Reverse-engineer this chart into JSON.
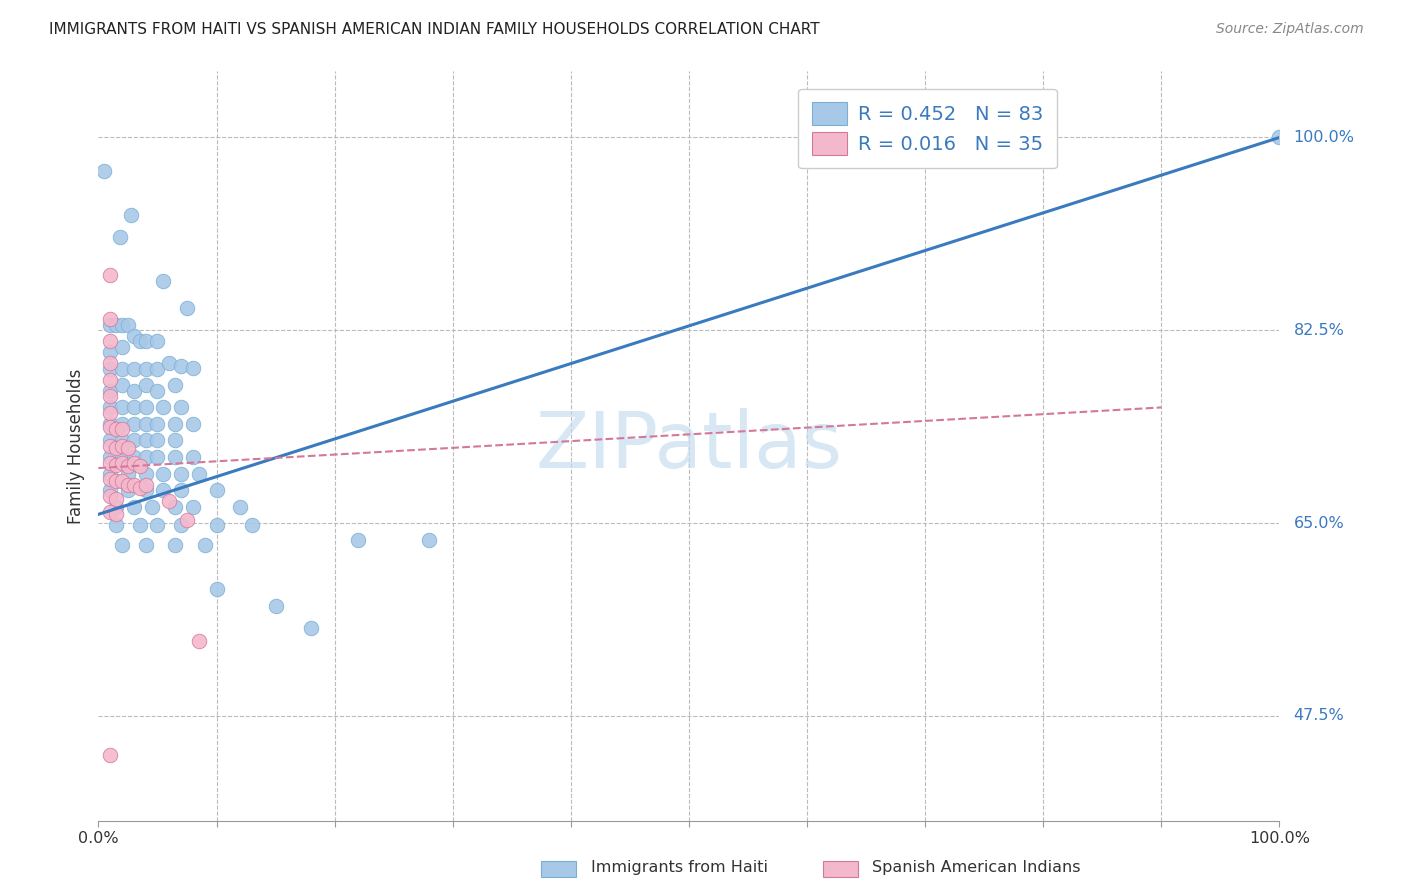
{
  "title": "IMMIGRANTS FROM HAITI VS SPANISH AMERICAN INDIAN FAMILY HOUSEHOLDS CORRELATION CHART",
  "source": "Source: ZipAtlas.com",
  "ylabel": "Family Households",
  "watermark": "ZIPatlas",
  "blue_color": "#a8c8e8",
  "blue_edge": "#7aafd4",
  "pink_color": "#f4b8cc",
  "pink_edge": "#d4789a",
  "trend_blue_color": "#3a7abf",
  "trend_pink_color": "#d4789a",
  "legend_text_color": "#3a7abf",
  "ytick_values": [
    1.0,
    0.825,
    0.65,
    0.475
  ],
  "ytick_labels": [
    "100.0%",
    "82.5%",
    "65.0%",
    "47.5%"
  ],
  "blue_trend_x": [
    0.0,
    1.0
  ],
  "blue_trend_y": [
    0.658,
    1.0
  ],
  "pink_trend_x": [
    0.0,
    0.9
  ],
  "pink_trend_y": [
    0.7,
    0.755
  ],
  "xlim": [
    0.0,
    1.0
  ],
  "ylim": [
    0.38,
    1.06
  ],
  "figsize": [
    14.06,
    8.92
  ],
  "dpi": 100,
  "blue_scatter": [
    [
      0.005,
      0.97
    ],
    [
      0.018,
      0.91
    ],
    [
      0.028,
      0.93
    ],
    [
      0.055,
      0.87
    ],
    [
      0.075,
      0.845
    ],
    [
      0.01,
      0.83
    ],
    [
      0.015,
      0.83
    ],
    [
      0.02,
      0.83
    ],
    [
      0.025,
      0.83
    ],
    [
      0.01,
      0.805
    ],
    [
      0.02,
      0.81
    ],
    [
      0.03,
      0.82
    ],
    [
      0.035,
      0.815
    ],
    [
      0.04,
      0.815
    ],
    [
      0.05,
      0.815
    ],
    [
      0.01,
      0.79
    ],
    [
      0.02,
      0.79
    ],
    [
      0.03,
      0.79
    ],
    [
      0.04,
      0.79
    ],
    [
      0.05,
      0.79
    ],
    [
      0.06,
      0.795
    ],
    [
      0.07,
      0.793
    ],
    [
      0.08,
      0.791
    ],
    [
      0.01,
      0.77
    ],
    [
      0.02,
      0.775
    ],
    [
      0.03,
      0.77
    ],
    [
      0.04,
      0.775
    ],
    [
      0.05,
      0.77
    ],
    [
      0.065,
      0.775
    ],
    [
      0.01,
      0.755
    ],
    [
      0.02,
      0.755
    ],
    [
      0.03,
      0.755
    ],
    [
      0.04,
      0.755
    ],
    [
      0.055,
      0.755
    ],
    [
      0.07,
      0.755
    ],
    [
      0.01,
      0.74
    ],
    [
      0.02,
      0.74
    ],
    [
      0.03,
      0.74
    ],
    [
      0.04,
      0.74
    ],
    [
      0.05,
      0.74
    ],
    [
      0.065,
      0.74
    ],
    [
      0.08,
      0.74
    ],
    [
      0.01,
      0.725
    ],
    [
      0.02,
      0.725
    ],
    [
      0.03,
      0.725
    ],
    [
      0.04,
      0.725
    ],
    [
      0.05,
      0.725
    ],
    [
      0.065,
      0.725
    ],
    [
      0.01,
      0.71
    ],
    [
      0.02,
      0.71
    ],
    [
      0.03,
      0.71
    ],
    [
      0.04,
      0.71
    ],
    [
      0.05,
      0.71
    ],
    [
      0.065,
      0.71
    ],
    [
      0.08,
      0.71
    ],
    [
      0.01,
      0.695
    ],
    [
      0.025,
      0.695
    ],
    [
      0.04,
      0.695
    ],
    [
      0.055,
      0.695
    ],
    [
      0.07,
      0.695
    ],
    [
      0.085,
      0.695
    ],
    [
      0.01,
      0.68
    ],
    [
      0.025,
      0.68
    ],
    [
      0.04,
      0.68
    ],
    [
      0.055,
      0.68
    ],
    [
      0.07,
      0.68
    ],
    [
      0.1,
      0.68
    ],
    [
      0.015,
      0.665
    ],
    [
      0.03,
      0.665
    ],
    [
      0.045,
      0.665
    ],
    [
      0.065,
      0.665
    ],
    [
      0.08,
      0.665
    ],
    [
      0.12,
      0.665
    ],
    [
      0.015,
      0.648
    ],
    [
      0.035,
      0.648
    ],
    [
      0.05,
      0.648
    ],
    [
      0.07,
      0.648
    ],
    [
      0.1,
      0.648
    ],
    [
      0.13,
      0.648
    ],
    [
      0.02,
      0.63
    ],
    [
      0.04,
      0.63
    ],
    [
      0.065,
      0.63
    ],
    [
      0.09,
      0.63
    ],
    [
      0.1,
      0.59
    ],
    [
      0.15,
      0.575
    ],
    [
      0.18,
      0.555
    ],
    [
      0.22,
      0.635
    ],
    [
      0.28,
      0.635
    ],
    [
      1.0,
      1.0
    ]
  ],
  "pink_scatter": [
    [
      0.01,
      0.875
    ],
    [
      0.01,
      0.835
    ],
    [
      0.01,
      0.815
    ],
    [
      0.01,
      0.795
    ],
    [
      0.01,
      0.78
    ],
    [
      0.01,
      0.765
    ],
    [
      0.01,
      0.75
    ],
    [
      0.01,
      0.737
    ],
    [
      0.015,
      0.735
    ],
    [
      0.01,
      0.72
    ],
    [
      0.015,
      0.718
    ],
    [
      0.01,
      0.705
    ],
    [
      0.015,
      0.703
    ],
    [
      0.01,
      0.69
    ],
    [
      0.015,
      0.688
    ],
    [
      0.01,
      0.675
    ],
    [
      0.015,
      0.672
    ],
    [
      0.01,
      0.66
    ],
    [
      0.015,
      0.658
    ],
    [
      0.02,
      0.735
    ],
    [
      0.02,
      0.72
    ],
    [
      0.025,
      0.718
    ],
    [
      0.02,
      0.705
    ],
    [
      0.025,
      0.702
    ],
    [
      0.02,
      0.688
    ],
    [
      0.025,
      0.685
    ],
    [
      0.03,
      0.705
    ],
    [
      0.035,
      0.702
    ],
    [
      0.03,
      0.685
    ],
    [
      0.035,
      0.682
    ],
    [
      0.04,
      0.685
    ],
    [
      0.06,
      0.67
    ],
    [
      0.075,
      0.653
    ],
    [
      0.085,
      0.543
    ],
    [
      0.01,
      0.44
    ]
  ]
}
